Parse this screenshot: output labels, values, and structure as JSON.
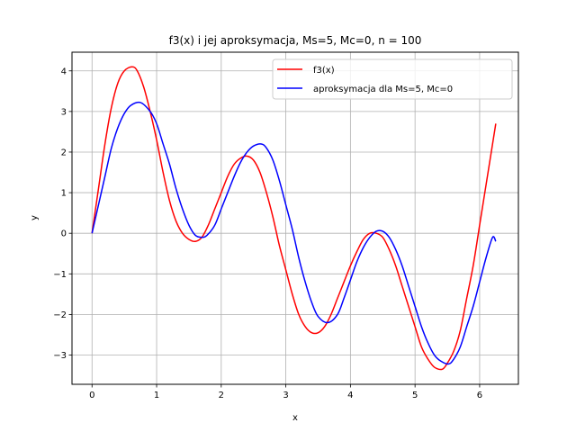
{
  "chart_data": {
    "type": "line",
    "title": "f3(x) i jej aproksymacja, Ms=5, Mc=0, n = 100",
    "xlabel": "x",
    "ylabel": "y",
    "xlim": [
      -0.31,
      6.6
    ],
    "ylim": [
      -3.72,
      4.46
    ],
    "xticks": [
      0,
      1,
      2,
      3,
      4,
      5,
      6
    ],
    "yticks": [
      -3,
      -2,
      -1,
      0,
      1,
      2,
      3,
      4
    ],
    "grid": true,
    "legend_position": "top-right",
    "series": [
      {
        "name": "f3(x)",
        "color": "#ff0000",
        "x": [
          0,
          0.1,
          0.2,
          0.3,
          0.4,
          0.5,
          0.62,
          0.7,
          0.8,
          0.9,
          1.0,
          1.1,
          1.2,
          1.3,
          1.4,
          1.5,
          1.6,
          1.7,
          1.8,
          1.9,
          2.0,
          2.1,
          2.2,
          2.3,
          2.4,
          2.5,
          2.6,
          2.7,
          2.8,
          2.9,
          3.0,
          3.1,
          3.2,
          3.3,
          3.4,
          3.5,
          3.6,
          3.7,
          3.8,
          3.9,
          4.0,
          4.1,
          4.2,
          4.3,
          4.4,
          4.5,
          4.6,
          4.7,
          4.8,
          4.9,
          5.0,
          5.1,
          5.2,
          5.3,
          5.42,
          5.5,
          5.6,
          5.7,
          5.8,
          5.9,
          6.0,
          6.1,
          6.2,
          6.25
        ],
        "y": [
          0,
          1.1,
          2.2,
          3.1,
          3.7,
          4.0,
          4.1,
          4.0,
          3.6,
          3.0,
          2.3,
          1.5,
          0.8,
          0.3,
          0.0,
          -0.15,
          -0.2,
          -0.1,
          0.2,
          0.6,
          1.0,
          1.4,
          1.7,
          1.85,
          1.9,
          1.8,
          1.5,
          1.0,
          0.4,
          -0.3,
          -0.9,
          -1.5,
          -2.0,
          -2.3,
          -2.45,
          -2.45,
          -2.3,
          -2.0,
          -1.6,
          -1.2,
          -0.8,
          -0.45,
          -0.15,
          0.0,
          0.0,
          -0.1,
          -0.4,
          -0.8,
          -1.3,
          -1.8,
          -2.3,
          -2.8,
          -3.1,
          -3.3,
          -3.35,
          -3.2,
          -2.9,
          -2.4,
          -1.6,
          -0.8,
          0.2,
          1.2,
          2.2,
          2.7
        ]
      },
      {
        "name": "aproksymacja dla Ms=5, Mc=0",
        "color": "#0000ff",
        "x": [
          0,
          0.1,
          0.2,
          0.3,
          0.4,
          0.5,
          0.6,
          0.75,
          0.9,
          1.0,
          1.1,
          1.2,
          1.3,
          1.4,
          1.5,
          1.6,
          1.7,
          1.78,
          1.9,
          2.0,
          2.1,
          2.2,
          2.3,
          2.4,
          2.5,
          2.62,
          2.7,
          2.8,
          2.9,
          3.0,
          3.1,
          3.2,
          3.3,
          3.4,
          3.5,
          3.65,
          3.8,
          3.9,
          4.0,
          4.1,
          4.2,
          4.3,
          4.4,
          4.5,
          4.6,
          4.7,
          4.8,
          4.9,
          5.0,
          5.1,
          5.2,
          5.3,
          5.4,
          5.52,
          5.6,
          5.7,
          5.8,
          5.9,
          6.0,
          6.1,
          6.2,
          6.25
        ],
        "y": [
          0,
          0.7,
          1.4,
          2.1,
          2.6,
          2.95,
          3.15,
          3.22,
          3.0,
          2.7,
          2.2,
          1.7,
          1.1,
          0.6,
          0.2,
          -0.05,
          -0.1,
          -0.05,
          0.2,
          0.6,
          1.0,
          1.4,
          1.75,
          2.0,
          2.15,
          2.2,
          2.1,
          1.8,
          1.3,
          0.7,
          0.1,
          -0.6,
          -1.2,
          -1.7,
          -2.05,
          -2.2,
          -2.0,
          -1.6,
          -1.15,
          -0.7,
          -0.35,
          -0.1,
          0.05,
          0.05,
          -0.1,
          -0.4,
          -0.8,
          -1.3,
          -1.8,
          -2.3,
          -2.7,
          -3.0,
          -3.15,
          -3.22,
          -3.1,
          -2.8,
          -2.3,
          -1.8,
          -1.2,
          -0.6,
          -0.1,
          -0.2
        ]
      }
    ]
  }
}
